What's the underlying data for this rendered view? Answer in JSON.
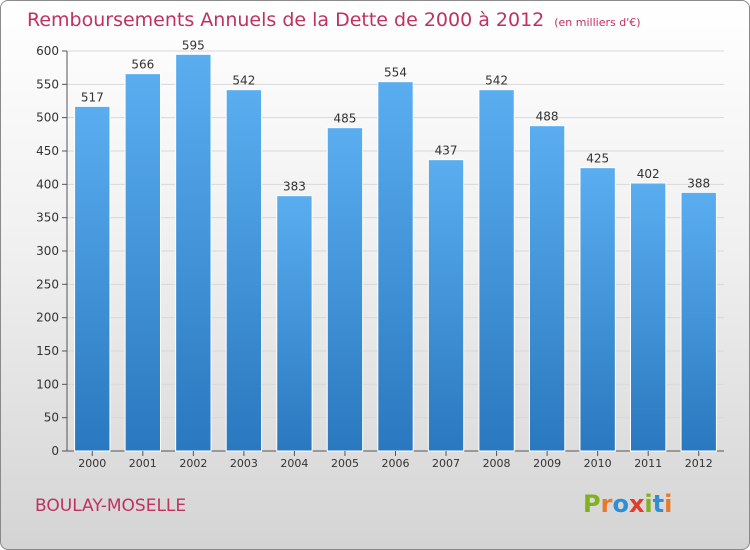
{
  "chart_data": {
    "type": "bar",
    "title": "Remboursements Annuels de la Dette de 2000 à 2012",
    "unit_label": "(en milliers d'€)",
    "categories": [
      "2000",
      "2001",
      "2002",
      "2003",
      "2004",
      "2005",
      "2006",
      "2007",
      "2008",
      "2009",
      "2010",
      "2011",
      "2012"
    ],
    "values": [
      517,
      566,
      595,
      542,
      383,
      485,
      554,
      437,
      542,
      488,
      425,
      402,
      388
    ],
    "ylim": [
      0,
      600
    ],
    "yticks": [
      0,
      50,
      100,
      150,
      200,
      250,
      300,
      350,
      400,
      450,
      500,
      550,
      600
    ],
    "grid": true,
    "bar_color": "#4a9fdf",
    "bar_color_bottom": "#2a78bf"
  },
  "footer": {
    "place": "BOULAY-MOSELLE",
    "logo_text": "Proxiti"
  },
  "colors": {
    "title": "#c0315e",
    "grid": "#d8d8d8",
    "logo": [
      "#7fb21c",
      "#e8792a",
      "#2f8fd5",
      "#e33a2c",
      "#7fb21c",
      "#2f8fd5",
      "#e8792a"
    ]
  }
}
